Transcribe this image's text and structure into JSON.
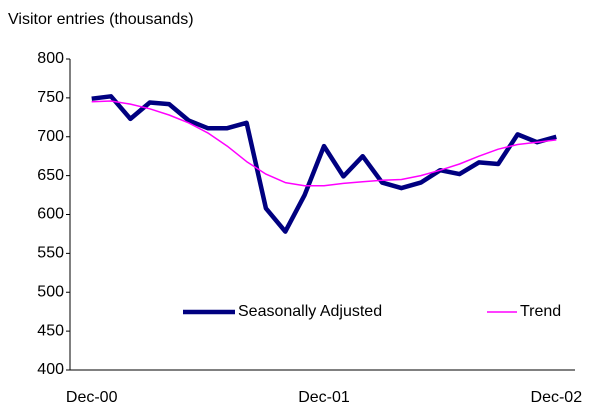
{
  "chart_data": {
    "type": "line",
    "y_label": "Visitor entries (thousands)",
    "categories": [
      "Dec-00",
      null,
      null,
      null,
      null,
      null,
      null,
      null,
      null,
      null,
      null,
      null,
      "Dec-01",
      null,
      null,
      null,
      null,
      null,
      null,
      null,
      null,
      null,
      null,
      null,
      "Dec-02"
    ],
    "series": [
      {
        "name": "Seasonally Adjusted",
        "color": "#000080",
        "values": [
          749,
          752,
          723,
          744,
          742,
          721,
          711,
          711,
          718,
          608,
          578,
          625,
          688,
          649,
          675,
          641,
          634,
          641,
          657,
          652,
          667,
          665,
          703,
          693,
          700
        ]
      },
      {
        "name": "Trend",
        "color": "#ff00ff",
        "values": [
          745,
          746,
          742,
          736,
          728,
          718,
          705,
          688,
          668,
          652,
          641,
          637,
          637,
          640,
          642,
          644,
          645,
          650,
          657,
          665,
          675,
          684,
          690,
          693,
          696
        ]
      }
    ],
    "ylim": [
      400,
      800
    ],
    "yticks": [
      400,
      450,
      500,
      550,
      600,
      650,
      700,
      750,
      800
    ]
  }
}
